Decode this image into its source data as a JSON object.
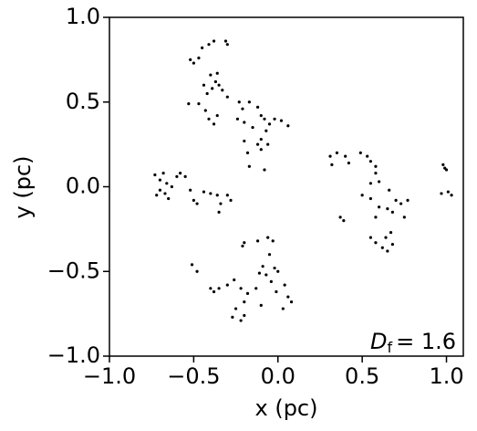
{
  "chart_data": {
    "type": "scatter",
    "x_label": "x (pc)",
    "y_label": "y (pc)",
    "annotation": {
      "symbol": "D",
      "subscript": "f",
      "text": "= 1.6"
    },
    "color": "#000000",
    "xlim": [
      -1.0,
      1.1
    ],
    "ylim": [
      -1.0,
      1.0
    ],
    "xticks": [
      {
        "value": -1.0,
        "label": "−1.0"
      },
      {
        "value": -0.5,
        "label": "−0.5"
      },
      {
        "value": 0,
        "label": "0.0"
      },
      {
        "value": 0.5,
        "label": "0.5"
      },
      {
        "value": 1.0,
        "label": "1.0"
      }
    ],
    "yticks": [
      {
        "value": -1.0,
        "label": "−1.0"
      },
      {
        "value": -0.5,
        "label": "−0.5"
      },
      {
        "value": 0,
        "label": "0.0"
      },
      {
        "value": 0.5,
        "label": "0.5"
      },
      {
        "value": 1.0,
        "label": "1.0"
      }
    ],
    "x": [
      -0.52,
      -0.5,
      -0.47,
      -0.45,
      -0.41,
      -0.38,
      -0.31,
      -0.3,
      -0.4,
      -0.37,
      -0.35,
      -0.39,
      -0.42,
      -0.36,
      -0.33,
      -0.44,
      -0.53,
      -0.47,
      -0.43,
      -0.41,
      -0.38,
      -0.36,
      -0.3,
      -0.23,
      -0.21,
      -0.17,
      -0.24,
      -0.2,
      -0.15,
      -0.12,
      -0.1,
      -0.08,
      -0.05,
      -0.02,
      0.02,
      0.06,
      -0.07,
      -0.1,
      -0.12,
      -0.1,
      -0.2,
      -0.18,
      -0.17,
      -0.06,
      -0.08,
      -0.73,
      -0.7,
      -0.68,
      -0.66,
      -0.7,
      -0.67,
      -0.63,
      -0.6,
      -0.58,
      -0.55,
      -0.72,
      -0.65,
      -0.52,
      -0.5,
      -0.48,
      -0.44,
      -0.4,
      -0.36,
      -0.34,
      -0.35,
      -0.3,
      -0.28,
      0.31,
      0.32,
      0.35,
      0.4,
      0.42,
      0.49,
      0.53,
      0.55,
      0.58,
      0.58,
      0.55,
      0.6,
      0.5,
      0.55,
      0.6,
      0.58,
      0.65,
      0.68,
      0.7,
      0.73,
      0.77,
      0.75,
      0.66,
      0.37,
      0.39,
      0.55,
      0.58,
      0.62,
      0.65,
      0.68,
      0.67,
      0.64,
      0.98,
      0.99,
      1.0,
      1.01,
      1.03,
      0.97,
      -0.51,
      -0.48,
      -0.4,
      -0.38,
      -0.35,
      -0.3,
      -0.26,
      -0.22,
      -0.18,
      -0.2,
      -0.25,
      -0.27,
      -0.22,
      -0.2,
      -0.21,
      -0.2,
      -0.12,
      -0.06,
      -0.03,
      -0.05,
      -0.09,
      -0.11,
      -0.07,
      -0.02,
      0.0,
      -0.04,
      -0.01,
      0.04,
      0.06,
      0.08,
      0.03,
      -0.13,
      -0.1
    ],
    "y": [
      0.75,
      0.73,
      0.76,
      0.82,
      0.84,
      0.86,
      0.86,
      0.84,
      0.66,
      0.62,
      0.6,
      0.58,
      0.55,
      0.67,
      0.57,
      0.6,
      0.49,
      0.49,
      0.45,
      0.4,
      0.37,
      0.42,
      0.53,
      0.5,
      0.46,
      0.5,
      0.4,
      0.38,
      0.35,
      0.47,
      0.42,
      0.4,
      0.37,
      0.4,
      0.39,
      0.36,
      0.33,
      0.28,
      0.25,
      0.22,
      0.27,
      0.2,
      0.12,
      0.25,
      0.1,
      0.07,
      0.04,
      0.08,
      0.02,
      -0.02,
      -0.04,
      0.0,
      0.06,
      0.08,
      0.06,
      -0.05,
      -0.07,
      -0.02,
      -0.08,
      -0.1,
      -0.03,
      -0.04,
      -0.05,
      -0.1,
      -0.15,
      -0.05,
      -0.08,
      0.18,
      0.13,
      0.2,
      0.18,
      0.14,
      0.2,
      0.18,
      0.15,
      0.12,
      0.08,
      0.02,
      0.03,
      -0.05,
      -0.07,
      -0.12,
      -0.18,
      -0.13,
      -0.15,
      -0.08,
      -0.1,
      -0.08,
      -0.18,
      -0.02,
      -0.18,
      -0.2,
      -0.3,
      -0.33,
      -0.36,
      -0.38,
      -0.34,
      -0.27,
      -0.3,
      0.13,
      0.11,
      0.1,
      -0.03,
      -0.05,
      -0.04,
      -0.46,
      -0.5,
      -0.6,
      -0.62,
      -0.6,
      -0.58,
      -0.55,
      -0.6,
      -0.63,
      -0.68,
      -0.72,
      -0.77,
      -0.79,
      -0.76,
      -0.35,
      -0.33,
      -0.32,
      -0.3,
      -0.32,
      -0.4,
      -0.47,
      -0.51,
      -0.52,
      -0.48,
      -0.5,
      -0.56,
      -0.62,
      -0.58,
      -0.65,
      -0.68,
      -0.72,
      -0.6,
      -0.7
    ]
  }
}
